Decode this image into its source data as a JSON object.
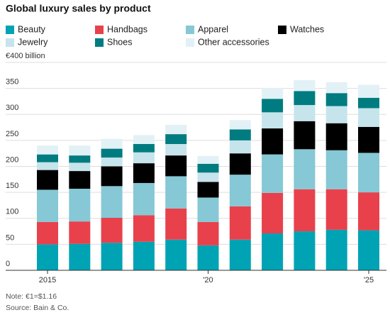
{
  "chart_data": {
    "type": "stacked_bar",
    "title": "Global luxury sales by product",
    "categories": [
      "2015",
      null,
      null,
      null,
      null,
      "'20",
      null,
      null,
      null,
      null,
      "'25"
    ],
    "series": [
      {
        "name": "Beauty",
        "color": "#00a3b4",
        "values": [
          50,
          51,
          53,
          55,
          59,
          48,
          59,
          71,
          75,
          78,
          77
        ]
      },
      {
        "name": "Handbags",
        "color": "#e8414c",
        "values": [
          43,
          43,
          48,
          51,
          60,
          45,
          64,
          78,
          81,
          78,
          73
        ]
      },
      {
        "name": "Apparel",
        "color": "#86c8d5",
        "values": [
          62,
          63,
          61,
          62,
          62,
          47,
          61,
          74,
          77,
          75,
          76
        ]
      },
      {
        "name": "Watches",
        "color": "#000000",
        "values": [
          38,
          34,
          38,
          38,
          40,
          30,
          41,
          50,
          54,
          52,
          50
        ]
      },
      {
        "name": "Jewelry",
        "color": "#c6e4ec",
        "values": [
          15,
          16,
          17,
          21,
          22,
          18,
          25,
          31,
          31,
          33,
          36
        ]
      },
      {
        "name": "Shoes",
        "color": "#007c80",
        "values": [
          15,
          14,
          17,
          16,
          19,
          17,
          21,
          26,
          27,
          25,
          20
        ]
      },
      {
        "name": "Other accessories",
        "color": "#e2f1f6",
        "values": [
          17,
          19,
          19,
          17,
          18,
          15,
          18,
          21,
          21,
          21,
          25
        ]
      }
    ],
    "ylim": [
      0,
      400
    ],
    "yticks": [
      0,
      50,
      100,
      150,
      200,
      250,
      300,
      350,
      {
        "value": 400,
        "label": "€400 billion"
      }
    ],
    "grid": true,
    "notes": [
      "Note: €1=$1.16",
      "Source: Bain & Co."
    ]
  }
}
